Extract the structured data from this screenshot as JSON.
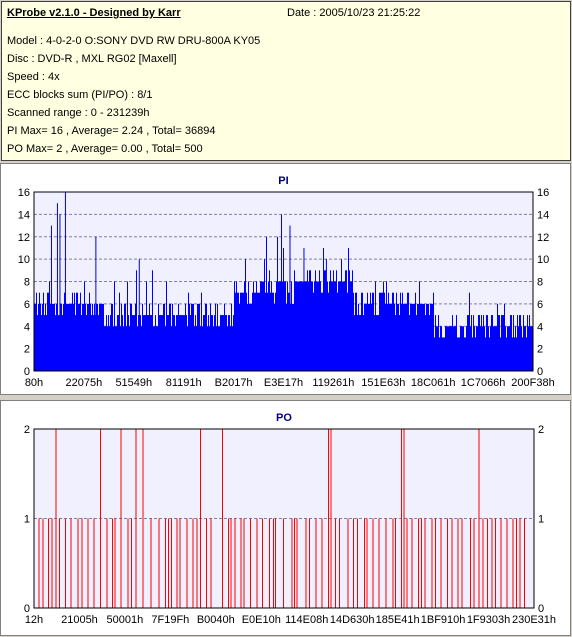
{
  "app_title": "KProbe v2.1.0 - Designed by Karr",
  "date_line": "Date : 2005/10/23 21:25:22",
  "info_lines": [
    "Model : 4-0-2-0 O:SONY    DVD RW DRU-800A  KY05",
    "Disc : DVD-R , MXL RG02 [Maxell]",
    "Speed : 4x",
    "ECC blocks sum (PI/PO) : 8/1",
    "Scanned range : 0 - 231239h",
    "PI Max= 16 , Average= 2.24 , Total= 36894",
    "PO Max= 2 , Average= 0.00 , Total= 500"
  ],
  "colors": {
    "pi_fill": "#0000ff",
    "po_line": "#ff0000",
    "plot_bg": "#f0f0ff",
    "grid": "#8080a0"
  },
  "chart_data": [
    {
      "type": "area",
      "title": "PI",
      "xlabel": "",
      "ylabel": "",
      "ylim": [
        0,
        16
      ],
      "yticks": [
        0,
        2,
        4,
        6,
        8,
        10,
        12,
        14,
        16
      ],
      "xlim": [
        0,
        231239
      ],
      "xtick_labels": [
        "80h",
        "22075h",
        "51549h",
        "81191h",
        "B2017h",
        "E3E17h",
        "119261h",
        "151E63h",
        "18C061h",
        "1C7066h",
        "200F38h"
      ],
      "grid": true,
      "series": [
        {
          "values_profile": [
            {
              "x_range": [
                0,
                14
              ],
              "typical": 6,
              "peak": 10
            },
            {
              "x_range": [
                14,
                40
              ],
              "typical": 5,
              "peak": 9
            },
            {
              "x_range": [
                40,
                52
              ],
              "typical": 7,
              "peak": 12
            },
            {
              "x_range": [
                52,
                64
              ],
              "typical": 8,
              "peak": 12
            },
            {
              "x_range": [
                64,
                80
              ],
              "typical": 6,
              "peak": 9
            },
            {
              "x_range": [
                80,
                100
              ],
              "typical": 4,
              "peak": 7
            }
          ],
          "notable_peaks": [
            {
              "x_pct": 6.2,
              "value": 16
            },
            {
              "x_pct": 4.6,
              "value": 15
            },
            {
              "x_pct": 5.1,
              "value": 14
            },
            {
              "x_pct": 3.4,
              "value": 13
            },
            {
              "x_pct": 12.3,
              "value": 12
            },
            {
              "x_pct": 21.0,
              "value": 10
            },
            {
              "x_pct": 49.5,
              "value": 14
            },
            {
              "x_pct": 51.2,
              "value": 13
            },
            {
              "x_pct": 48.7,
              "value": 12
            },
            {
              "x_pct": 54.0,
              "value": 11
            },
            {
              "x_pct": 58.5,
              "value": 10
            }
          ]
        }
      ]
    },
    {
      "type": "bar",
      "title": "PO",
      "xlabel": "",
      "ylabel": "",
      "ylim": [
        0,
        2
      ],
      "yticks": [
        0,
        1,
        2
      ],
      "xlim": [
        0,
        231239
      ],
      "xtick_labels": [
        "12h",
        "21005h",
        "50001h",
        "7F19Fh",
        "B0040h",
        "E0E10h",
        "114E08h",
        "14D630h",
        "185E41h",
        "1BF910h",
        "1F9303h",
        "230E31h"
      ],
      "grid": true,
      "value2_positions_pct": [
        4.4,
        13.3,
        17.4,
        20.4,
        21.8,
        33.3,
        37.7,
        58.9,
        59.4,
        73.5,
        74.0,
        89.0
      ],
      "value1_positions_pct": [
        1.0,
        1.8,
        2.9,
        3.6,
        5.1,
        6.3,
        7.4,
        8.8,
        9.6,
        10.8,
        12.0,
        14.6,
        15.7,
        16.2,
        18.8,
        19.5,
        23.4,
        25.0,
        26.3,
        26.9,
        27.5,
        28.6,
        29.2,
        30.6,
        31.8,
        32.6,
        34.5,
        35.4,
        38.9,
        39.4,
        40.2,
        41.4,
        42.0,
        43.3,
        44.6,
        45.7,
        47.1,
        47.9,
        48.3,
        49.9,
        51.6,
        52.1,
        52.6,
        54.4,
        55.1,
        56.4,
        57.6,
        60.3,
        61.1,
        62.8,
        63.9,
        64.7,
        66.1,
        66.6,
        67.8,
        69.0,
        70.4,
        71.8,
        72.3,
        74.6,
        75.6,
        76.9,
        77.5,
        78.2,
        79.6,
        80.3,
        81.4,
        82.7,
        83.6,
        84.8,
        85.6,
        87.3,
        88.0,
        89.8,
        90.7,
        91.6,
        92.3,
        93.4,
        94.6,
        95.8,
        96.5,
        97.2,
        98.1
      ]
    }
  ]
}
